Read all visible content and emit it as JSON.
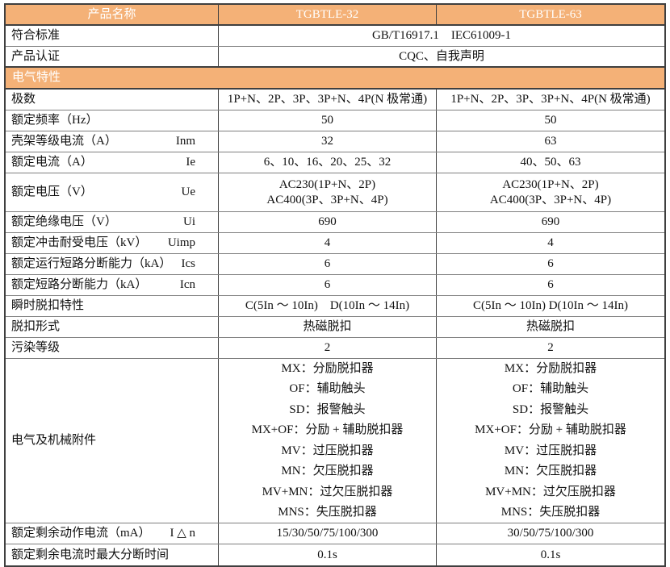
{
  "colors": {
    "header_bg": "#f4b177",
    "header_text": "#ffffff",
    "grid_horizontal": "#7f7f7f",
    "grid_vertical": "#3f3f3f",
    "body_text": "#111111"
  },
  "header": {
    "name_label": "产品名称",
    "model_a": "TGBTLE-32",
    "model_b": "TGBTLE-63"
  },
  "standards": {
    "label": "符合标准",
    "value": "GB/T16917.1　IEC61009-1"
  },
  "certification": {
    "label": "产品认证",
    "value": "CQC、自我声明"
  },
  "section": {
    "title": "电气特性"
  },
  "rows": [
    {
      "label": "极数",
      "a": "1P+N、2P、3P、3P+N、4P(N 极常通)",
      "b": "1P+N、2P、3P、3P+N、4P(N 极常通)"
    },
    {
      "label": "额定频率（Hz）",
      "a": "50",
      "b": "50"
    },
    {
      "label": "壳架等级电流（A）",
      "sym": "Inm",
      "a": "32",
      "b": "63"
    },
    {
      "label": "额定电流（A）",
      "sym": "Ie",
      "a": "6、10、16、20、25、32",
      "b": "40、50、63"
    },
    {
      "label": "额定电压（V）",
      "sym": "Ue",
      "a1": "AC230(1P+N、2P)",
      "a2": "AC400(3P、3P+N、4P)",
      "b1": "AC230(1P+N、2P)",
      "b2": "AC400(3P、3P+N、4P)"
    },
    {
      "label": "额定绝缘电压（V）",
      "sym": "Ui",
      "a": "690",
      "b": "690"
    },
    {
      "label": "额定冲击耐受电压（kV）",
      "sym": "Uimp",
      "a": "4",
      "b": "4"
    },
    {
      "label": "额定运行短路分断能力（kA）",
      "sym": "Ics",
      "a": "6",
      "b": "6"
    },
    {
      "label": "额定短路分断能力（kA）",
      "sym": "Icn",
      "a": "6",
      "b": "6"
    },
    {
      "label": "瞬时脱扣特性",
      "a": "C(5In ～ 10In)　D(10In ～ 14In)",
      "b": "C(5In ～ 10In) D(10In ～ 14In)"
    },
    {
      "label": "脱扣形式",
      "a": "热磁脱扣",
      "b": "热磁脱扣"
    },
    {
      "label": "污染等级",
      "a": "2",
      "b": "2"
    }
  ],
  "accessories": {
    "label": "电气及机械附件",
    "items_a": [
      "MX：分励脱扣器",
      "OF：辅助触头",
      "SD：报警触头",
      "MX+OF：分励 + 辅助脱扣器",
      "MV：过压脱扣器",
      "MN：欠压脱扣器",
      "MV+MN：过欠压脱扣器",
      "MNS：失压脱扣器"
    ],
    "items_b": [
      "MX：分励脱扣器",
      "OF：辅助触头",
      "SD：报警触头",
      "MX+OF：分励 + 辅助脱扣器",
      "MV：过压脱扣器",
      "MN：欠压脱扣器",
      "MV+MN：过欠压脱扣器",
      "MNS：失压脱扣器"
    ]
  },
  "residual_current": {
    "label": "额定剩余动作电流（mA）",
    "sym": "I △ n",
    "a": "15/30/50/75/100/300",
    "b": "30/50/75/100/300"
  },
  "breaking_time": {
    "label": "额定剩余电流时最大分断时间",
    "a": "0.1s",
    "b": "0.1s"
  }
}
